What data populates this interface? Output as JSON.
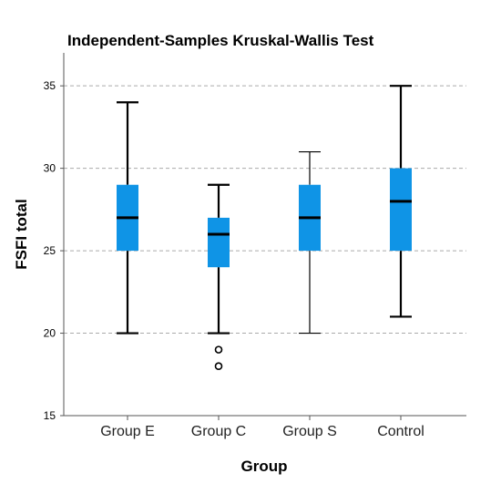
{
  "chart_data": {
    "type": "box",
    "title": "Independent-Samples Kruskal-Wallis Test",
    "xlabel": "Group",
    "ylabel": "FSFI total",
    "ylim": [
      15,
      37
    ],
    "yticks": [
      "15",
      "20",
      "25",
      "30",
      "35"
    ],
    "grid": "horizontal-dashed",
    "box_color": "#0f94e6",
    "categories": [
      "Group E",
      "Group C",
      "Group S",
      "Control"
    ],
    "boxes": [
      {
        "category": "Group E",
        "min": 20,
        "q1": 25,
        "median": 27,
        "q3": 29,
        "max": 34,
        "outliers": []
      },
      {
        "category": "Group C",
        "min": 20,
        "q1": 24,
        "median": 26,
        "q3": 27,
        "max": 29,
        "outliers": [
          19,
          18
        ]
      },
      {
        "category": "Group S",
        "min": 20,
        "q1": 25,
        "median": 27,
        "q3": 29,
        "max": 31,
        "outliers": []
      },
      {
        "category": "Control",
        "min": 21,
        "q1": 25,
        "median": 28,
        "q3": 30,
        "max": 35,
        "outliers": []
      }
    ]
  }
}
